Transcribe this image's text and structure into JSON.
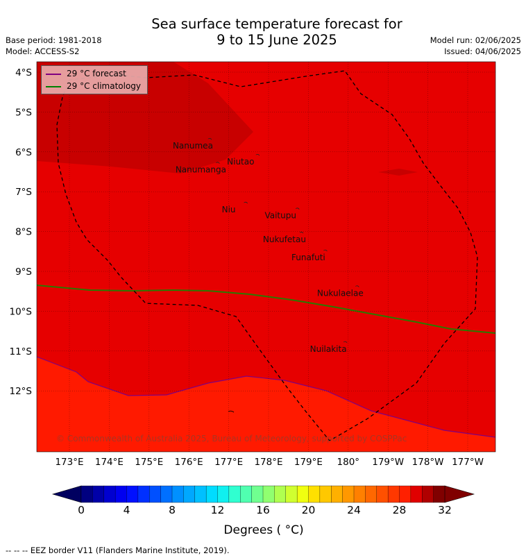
{
  "title_line1": "Sea surface temperature forecast for",
  "title_line2": "9 to 15 June 2025",
  "base_period": "Base period: 1981-2018",
  "model": "Model: ACCESS-S2",
  "model_run": "Model run: 02/06/2025",
  "issued": "Issued: 04/06/2025",
  "legend": {
    "forecast_label": "29 °C  forecast",
    "forecast_color": "#800080",
    "climatology_label": "29 °C  climatology",
    "climatology_color": "#008000"
  },
  "axes": {
    "x_ticks": [
      "173°E",
      "174°E",
      "175°E",
      "176°E",
      "177°E",
      "178°E",
      "179°E",
      "180°",
      "179°W",
      "178°W",
      "177°W"
    ],
    "y_ticks": [
      "4°S",
      "5°S",
      "6°S",
      "7°S",
      "8°S",
      "9°S",
      "10°S",
      "11°S",
      "12°S"
    ]
  },
  "places": [
    {
      "name": "Nanumea",
      "lon": 176.1,
      "lat": -5.85
    },
    {
      "name": "Niutao",
      "lon": 177.3,
      "lat": -6.25
    },
    {
      "name": "Nanumanga",
      "lon": 176.3,
      "lat": -6.45
    },
    {
      "name": "Niu",
      "lon": 177.0,
      "lat": -7.45
    },
    {
      "name": "Vaitupu",
      "lon": 178.3,
      "lat": -7.6
    },
    {
      "name": "Nukufetau",
      "lon": 178.4,
      "lat": -8.2
    },
    {
      "name": "Funafuti",
      "lon": 179.0,
      "lat": -8.65
    },
    {
      "name": "Nukulaelae",
      "lon": 179.8,
      "lat": -9.55
    },
    {
      "name": "Nuilakita",
      "lon": 179.5,
      "lat": -10.95
    }
  ],
  "copyright": "© Commonwealth of Australia 2025, Bureau of Meteorology, supported by COSPPac",
  "colorbar": {
    "title": "Degrees ( °C)",
    "ticks": [
      "0",
      "4",
      "8",
      "12",
      "16",
      "20",
      "24",
      "28",
      "32"
    ],
    "range": [
      0,
      32
    ],
    "step": 1,
    "colors": [
      "#000080",
      "#0000a8",
      "#0000d0",
      "#0000f0",
      "#0010ff",
      "#0030ff",
      "#0050ff",
      "#0070ff",
      "#0090ff",
      "#00a8ff",
      "#00c0ff",
      "#00dcff",
      "#10f0f0",
      "#30ffd0",
      "#50ffb0",
      "#70ff90",
      "#90ff70",
      "#b0ff50",
      "#d0ff30",
      "#f0ff10",
      "#ffe000",
      "#ffc800",
      "#ffb000",
      "#ff9800",
      "#ff8000",
      "#ff6800",
      "#ff5000",
      "#ff3800",
      "#ff2000",
      "#e00000",
      "#b00000",
      "#800000"
    ]
  },
  "footer": "--  --  -- EEZ border V11 (Flanders Marine Institute, 2019)."
}
